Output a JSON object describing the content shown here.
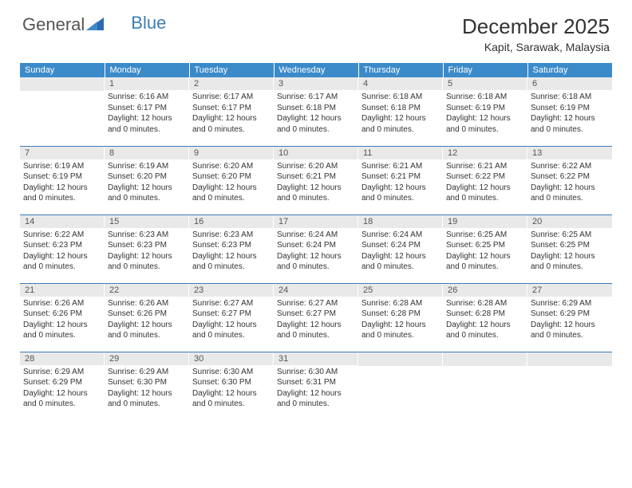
{
  "brand": {
    "part1": "General",
    "part2": "Blue"
  },
  "title": "December 2025",
  "location": "Kapit, Sarawak, Malaysia",
  "colors": {
    "header_bg": "#3b8aca",
    "header_text": "#ffffff",
    "daynum_bg": "#e9e9e9",
    "daynum_text": "#555555",
    "border": "#3b7db8",
    "body_text": "#333333",
    "logo_gray": "#555555",
    "logo_blue": "#3b7db8"
  },
  "typography": {
    "title_fontsize": 26,
    "location_fontsize": 14,
    "weekday_fontsize": 11,
    "daynum_fontsize": 11,
    "body_fontsize": 10
  },
  "weekdays": [
    "Sunday",
    "Monday",
    "Tuesday",
    "Wednesday",
    "Thursday",
    "Friday",
    "Saturday"
  ],
  "weeks": [
    [
      {
        "n": "",
        "lines": []
      },
      {
        "n": "1",
        "lines": [
          "Sunrise: 6:16 AM",
          "Sunset: 6:17 PM",
          "Daylight: 12 hours and 0 minutes."
        ]
      },
      {
        "n": "2",
        "lines": [
          "Sunrise: 6:17 AM",
          "Sunset: 6:17 PM",
          "Daylight: 12 hours and 0 minutes."
        ]
      },
      {
        "n": "3",
        "lines": [
          "Sunrise: 6:17 AM",
          "Sunset: 6:18 PM",
          "Daylight: 12 hours and 0 minutes."
        ]
      },
      {
        "n": "4",
        "lines": [
          "Sunrise: 6:18 AM",
          "Sunset: 6:18 PM",
          "Daylight: 12 hours and 0 minutes."
        ]
      },
      {
        "n": "5",
        "lines": [
          "Sunrise: 6:18 AM",
          "Sunset: 6:19 PM",
          "Daylight: 12 hours and 0 minutes."
        ]
      },
      {
        "n": "6",
        "lines": [
          "Sunrise: 6:18 AM",
          "Sunset: 6:19 PM",
          "Daylight: 12 hours and 0 minutes."
        ]
      }
    ],
    [
      {
        "n": "7",
        "lines": [
          "Sunrise: 6:19 AM",
          "Sunset: 6:19 PM",
          "Daylight: 12 hours and 0 minutes."
        ]
      },
      {
        "n": "8",
        "lines": [
          "Sunrise: 6:19 AM",
          "Sunset: 6:20 PM",
          "Daylight: 12 hours and 0 minutes."
        ]
      },
      {
        "n": "9",
        "lines": [
          "Sunrise: 6:20 AM",
          "Sunset: 6:20 PM",
          "Daylight: 12 hours and 0 minutes."
        ]
      },
      {
        "n": "10",
        "lines": [
          "Sunrise: 6:20 AM",
          "Sunset: 6:21 PM",
          "Daylight: 12 hours and 0 minutes."
        ]
      },
      {
        "n": "11",
        "lines": [
          "Sunrise: 6:21 AM",
          "Sunset: 6:21 PM",
          "Daylight: 12 hours and 0 minutes."
        ]
      },
      {
        "n": "12",
        "lines": [
          "Sunrise: 6:21 AM",
          "Sunset: 6:22 PM",
          "Daylight: 12 hours and 0 minutes."
        ]
      },
      {
        "n": "13",
        "lines": [
          "Sunrise: 6:22 AM",
          "Sunset: 6:22 PM",
          "Daylight: 12 hours and 0 minutes."
        ]
      }
    ],
    [
      {
        "n": "14",
        "lines": [
          "Sunrise: 6:22 AM",
          "Sunset: 6:23 PM",
          "Daylight: 12 hours and 0 minutes."
        ]
      },
      {
        "n": "15",
        "lines": [
          "Sunrise: 6:23 AM",
          "Sunset: 6:23 PM",
          "Daylight: 12 hours and 0 minutes."
        ]
      },
      {
        "n": "16",
        "lines": [
          "Sunrise: 6:23 AM",
          "Sunset: 6:23 PM",
          "Daylight: 12 hours and 0 minutes."
        ]
      },
      {
        "n": "17",
        "lines": [
          "Sunrise: 6:24 AM",
          "Sunset: 6:24 PM",
          "Daylight: 12 hours and 0 minutes."
        ]
      },
      {
        "n": "18",
        "lines": [
          "Sunrise: 6:24 AM",
          "Sunset: 6:24 PM",
          "Daylight: 12 hours and 0 minutes."
        ]
      },
      {
        "n": "19",
        "lines": [
          "Sunrise: 6:25 AM",
          "Sunset: 6:25 PM",
          "Daylight: 12 hours and 0 minutes."
        ]
      },
      {
        "n": "20",
        "lines": [
          "Sunrise: 6:25 AM",
          "Sunset: 6:25 PM",
          "Daylight: 12 hours and 0 minutes."
        ]
      }
    ],
    [
      {
        "n": "21",
        "lines": [
          "Sunrise: 6:26 AM",
          "Sunset: 6:26 PM",
          "Daylight: 12 hours and 0 minutes."
        ]
      },
      {
        "n": "22",
        "lines": [
          "Sunrise: 6:26 AM",
          "Sunset: 6:26 PM",
          "Daylight: 12 hours and 0 minutes."
        ]
      },
      {
        "n": "23",
        "lines": [
          "Sunrise: 6:27 AM",
          "Sunset: 6:27 PM",
          "Daylight: 12 hours and 0 minutes."
        ]
      },
      {
        "n": "24",
        "lines": [
          "Sunrise: 6:27 AM",
          "Sunset: 6:27 PM",
          "Daylight: 12 hours and 0 minutes."
        ]
      },
      {
        "n": "25",
        "lines": [
          "Sunrise: 6:28 AM",
          "Sunset: 6:28 PM",
          "Daylight: 12 hours and 0 minutes."
        ]
      },
      {
        "n": "26",
        "lines": [
          "Sunrise: 6:28 AM",
          "Sunset: 6:28 PM",
          "Daylight: 12 hours and 0 minutes."
        ]
      },
      {
        "n": "27",
        "lines": [
          "Sunrise: 6:29 AM",
          "Sunset: 6:29 PM",
          "Daylight: 12 hours and 0 minutes."
        ]
      }
    ],
    [
      {
        "n": "28",
        "lines": [
          "Sunrise: 6:29 AM",
          "Sunset: 6:29 PM",
          "Daylight: 12 hours and 0 minutes."
        ]
      },
      {
        "n": "29",
        "lines": [
          "Sunrise: 6:29 AM",
          "Sunset: 6:30 PM",
          "Daylight: 12 hours and 0 minutes."
        ]
      },
      {
        "n": "30",
        "lines": [
          "Sunrise: 6:30 AM",
          "Sunset: 6:30 PM",
          "Daylight: 12 hours and 0 minutes."
        ]
      },
      {
        "n": "31",
        "lines": [
          "Sunrise: 6:30 AM",
          "Sunset: 6:31 PM",
          "Daylight: 12 hours and 0 minutes."
        ]
      },
      {
        "n": "",
        "lines": []
      },
      {
        "n": "",
        "lines": []
      },
      {
        "n": "",
        "lines": []
      }
    ]
  ]
}
